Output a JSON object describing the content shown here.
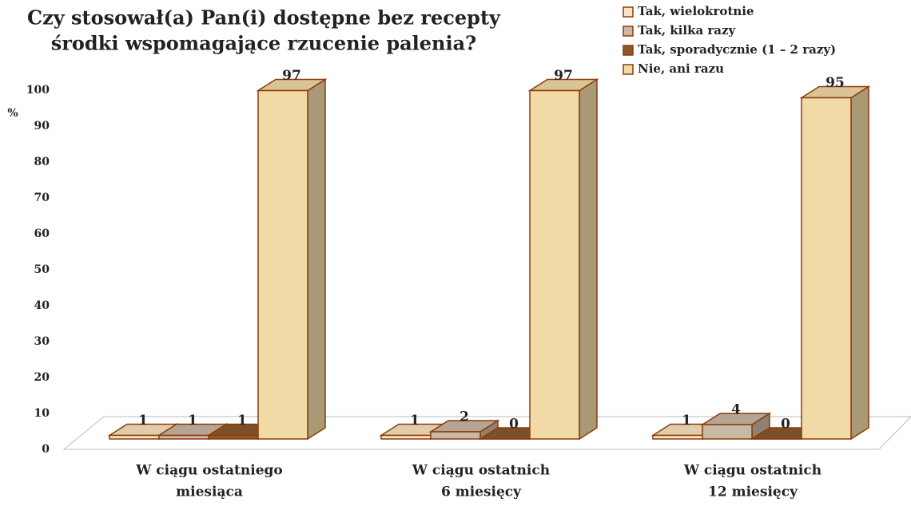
{
  "chart_data": {
    "type": "bar3d",
    "title": [
      "Czy stosował(a) Pan(i) dostępne bez recepty",
      "środki wspomagające rzucenie palenia?"
    ],
    "y_label": "%",
    "categories": [
      [
        "W ciągu ostatniego",
        "miesiąca"
      ],
      [
        "W ciągu ostatnich",
        "6 miesięcy"
      ],
      [
        "W ciągu ostatnich",
        "12 miesięcy"
      ]
    ],
    "series": [
      {
        "name": "Tak, wielokrotnie",
        "color": "#fbe3c0",
        "values": [
          1,
          1,
          1
        ]
      },
      {
        "name": "Tak, kilka razy",
        "color": "#c9b8a4",
        "values": [
          1,
          2,
          4
        ]
      },
      {
        "name": "Tak, sporadycznie (1 – 2 razy)",
        "color": "#8a5a2e",
        "values": [
          1,
          0,
          0
        ]
      },
      {
        "name": "Nie, ani razu",
        "color": "#f2daa6",
        "values": [
          97,
          97,
          95
        ]
      }
    ],
    "ylim": [
      0,
      100
    ],
    "yticks": [
      0,
      10,
      20,
      30,
      40,
      50,
      60,
      70,
      80,
      90,
      100
    ]
  }
}
